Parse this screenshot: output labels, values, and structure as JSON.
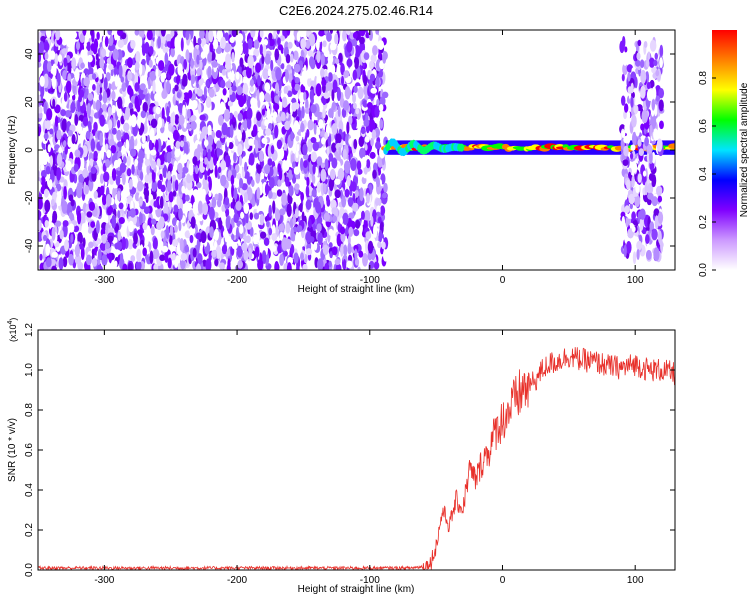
{
  "title": "C2E6.2024.275.02.46.R14",
  "chart_data": [
    {
      "type": "heatmap",
      "xlabel": "Height of straight line (km)",
      "ylabel": "Frequency (Hz)",
      "xlim": [
        -350,
        130
      ],
      "ylim": [
        -50,
        50
      ],
      "xticks": [
        -300,
        -200,
        -100,
        0,
        100
      ],
      "yticks": [
        -40,
        -20,
        0,
        20,
        40
      ],
      "colorbar": {
        "label": "Normalized spectral amplitude",
        "range": [
          0,
          1
        ],
        "ticks": [
          "0.0",
          "0.2",
          "0.4",
          "0.6",
          "0.8"
        ],
        "colors": [
          "#ffffff",
          "#cc99ff",
          "#8000ff",
          "#0000ff",
          "#00e5ff",
          "#00ff00",
          "#ffff00",
          "#ff8000",
          "#ff0000"
        ]
      },
      "regions": [
        {
          "x": [
            -350,
            -88
          ],
          "y": [
            -50,
            50
          ],
          "amplitude": "0.1-0.3",
          "desc": "broadband noise"
        },
        {
          "x": [
            -88,
            130
          ],
          "y": [
            -1,
            3
          ],
          "amplitude": "0.6-1.0",
          "desc": "narrow signal line near 0-2 Hz"
        },
        {
          "x": [
            90,
            120
          ],
          "y": [
            -45,
            45
          ],
          "amplitude": "0.1-0.3",
          "desc": "broadband noise patch"
        }
      ]
    },
    {
      "type": "line",
      "xlabel": "Height of straight line (km)",
      "ylabel": "SNR (10 * v/v)",
      "multiplier": "(x10",
      "multiplier_exp": "4",
      "multiplier_close": ")",
      "xlim": [
        -350,
        130
      ],
      "ylim": [
        0,
        1.2
      ],
      "xticks": [
        -300,
        -200,
        -100,
        0,
        100
      ],
      "yticks": [
        "0.0",
        "0.2",
        "0.4",
        "0.6",
        "0.8",
        "1.0",
        "1.2"
      ],
      "color": "#e8302a",
      "x": [
        -350,
        -300,
        -200,
        -100,
        -70,
        -55,
        -50,
        -45,
        -40,
        -35,
        -30,
        -25,
        -20,
        -15,
        -10,
        -5,
        0,
        5,
        10,
        15,
        20,
        25,
        30,
        35,
        40,
        50,
        60,
        70,
        80,
        90,
        100,
        110,
        120,
        130
      ],
      "y": [
        0.01,
        0.01,
        0.01,
        0.01,
        0.01,
        0.02,
        0.12,
        0.3,
        0.22,
        0.35,
        0.3,
        0.5,
        0.45,
        0.55,
        0.6,
        0.7,
        0.75,
        0.8,
        0.85,
        0.9,
        0.92,
        0.95,
        1.0,
        1.03,
        1.04,
        1.07,
        1.05,
        1.04,
        1.02,
        1.01,
        1.03,
        1.0,
        1.0,
        0.98
      ]
    }
  ]
}
